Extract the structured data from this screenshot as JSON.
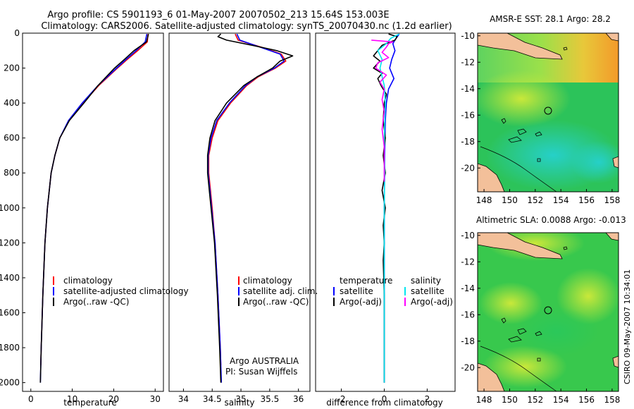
{
  "header": {
    "line1": "Argo profile: CS 5901193_6 01-May-2007 20070502_213 15.64S 153.003E",
    "line2": "Climatology: CARS2006. Satellite-adjusted climatology: synTS_20070430.nc (1.2d earlier)"
  },
  "footer_stamp": "CSIRO 09-May-2007 10:34:01",
  "colors": {
    "climatology": "#ff0000",
    "satellite_adj": "#0000ff",
    "argo": "#000000",
    "salinity_satellite": "#00e5ee",
    "salinity_argo": "#ff00ff",
    "land": "#f3c09a"
  },
  "chart_data": [
    {
      "type": "line",
      "id": "temperature_panel",
      "xlabel": "temperature",
      "ylabel": "",
      "xlim": [
        -2,
        32
      ],
      "ylim": [
        2050,
        0
      ],
      "xticks": [
        0,
        10,
        20,
        30
      ],
      "yticks": [
        0,
        200,
        400,
        600,
        800,
        1000,
        1200,
        1400,
        1600,
        1800,
        2000
      ],
      "legend": {
        "placement": "bottom",
        "entries": [
          "climatology",
          "satellite-adjusted climatology",
          "Argo(..raw -QC)"
        ]
      },
      "series": [
        {
          "name": "climatology",
          "color": "#ff0000",
          "depth": [
            5,
            50,
            100,
            150,
            200,
            300,
            400,
            500,
            600,
            700,
            800,
            1000,
            1200,
            1500,
            1800,
            1900
          ],
          "values": [
            28.3,
            28.1,
            25.8,
            23.3,
            20.9,
            16.4,
            12.6,
            9.2,
            7.0,
            5.8,
            4.9,
            4.0,
            3.4,
            2.9,
            2.5,
            2.4
          ]
        },
        {
          "name": "satellite-adjusted climatology",
          "color": "#0000ff",
          "depth": [
            5,
            50,
            100,
            150,
            200,
            300,
            400,
            500,
            600,
            700,
            800,
            1000,
            1200,
            1500,
            1800,
            2000
          ],
          "values": [
            28.0,
            27.6,
            25.4,
            23.0,
            20.7,
            16.2,
            12.4,
            9.1,
            7.0,
            5.8,
            4.9,
            4.0,
            3.4,
            2.9,
            2.5,
            2.3
          ]
        },
        {
          "name": "Argo(..raw -QC)",
          "color": "#000000",
          "depth": [
            5,
            50,
            100,
            150,
            200,
            300,
            400,
            500,
            600,
            700,
            800,
            1000,
            1200,
            1500,
            1800,
            2000
          ],
          "values": [
            28.4,
            27.9,
            24.9,
            22.6,
            20.2,
            16.2,
            12.8,
            9.3,
            7.0,
            5.8,
            4.9,
            4.0,
            3.4,
            2.9,
            2.5,
            2.3
          ]
        }
      ]
    },
    {
      "type": "line",
      "id": "salinity_panel",
      "xlabel": "salinity",
      "xlim": [
        33.75,
        36.2
      ],
      "ylim": [
        2050,
        0
      ],
      "xticks": [
        34,
        34.5,
        35,
        35.5,
        36
      ],
      "legend": {
        "placement": "bottom",
        "entries": [
          "climatology",
          "satellite adj. clim.",
          "Argo(..raw -QC)"
        ]
      },
      "annotations": [
        "Argo AUSTRALIA",
        "PI: Susan Wijffels"
      ],
      "series": [
        {
          "name": "climatology",
          "color": "#ff0000",
          "depth": [
            5,
            40,
            80,
            120,
            160,
            200,
            250,
            300,
            400,
            500,
            600,
            700,
            800,
            900,
            1000,
            1200,
            1500,
            1800,
            1900
          ],
          "values": [
            34.9,
            34.95,
            35.35,
            35.7,
            35.78,
            35.6,
            35.3,
            35.1,
            34.82,
            34.6,
            34.5,
            34.44,
            34.44,
            34.47,
            34.5,
            34.55,
            34.6,
            34.64,
            34.65
          ]
        },
        {
          "name": "satellite adj. clim.",
          "color": "#0000ff",
          "depth": [
            5,
            40,
            80,
            120,
            160,
            200,
            250,
            300,
            400,
            500,
            600,
            700,
            800,
            900,
            1000,
            1200,
            1500,
            1800,
            2000
          ],
          "values": [
            34.93,
            34.98,
            35.33,
            35.68,
            35.75,
            35.58,
            35.28,
            35.08,
            34.8,
            34.58,
            34.48,
            34.43,
            34.43,
            34.46,
            34.49,
            34.55,
            34.6,
            34.64,
            34.66
          ]
        },
        {
          "name": "Argo(..raw -QC)",
          "color": "#000000",
          "depth": [
            5,
            20,
            40,
            70,
            100,
            130,
            160,
            200,
            250,
            300,
            400,
            500,
            600,
            700,
            800,
            900,
            1000,
            1200,
            1500,
            1800,
            2000
          ],
          "values": [
            34.65,
            34.6,
            34.75,
            35.2,
            35.62,
            35.9,
            35.68,
            35.55,
            35.28,
            35.05,
            34.75,
            34.55,
            34.46,
            34.42,
            34.42,
            34.45,
            34.48,
            34.54,
            34.59,
            34.63,
            34.65
          ]
        }
      ]
    },
    {
      "type": "line",
      "id": "difference_panel",
      "xlabel": "difference from climatology",
      "xlim": [
        -3.2,
        3.3
      ],
      "ylim": [
        2050,
        0
      ],
      "xticks": [
        -2,
        0,
        2
      ],
      "legend": {
        "placement": "bottom",
        "headings": [
          "temperature",
          "salinity"
        ],
        "entries": [
          "satellite",
          "Argo(-adj)",
          "satellite",
          "Argo(-adj)"
        ]
      },
      "series": [
        {
          "name": "temperature satellite",
          "color": "#0000ff",
          "depth": [
            5,
            30,
            60,
            100,
            150,
            200,
            260,
            320,
            400,
            500,
            700,
            1000,
            1500,
            2000
          ],
          "values": [
            0.7,
            0.55,
            0.4,
            0.5,
            0.35,
            0.25,
            0.45,
            0.2,
            0.1,
            0.05,
            0.02,
            0.0,
            0.0,
            0.0
          ]
        },
        {
          "name": "temperature Argo(-adj)",
          "color": "#000000",
          "depth": [
            5,
            20,
            40,
            70,
            100,
            130,
            160,
            200,
            230,
            260,
            300,
            350,
            400,
            500,
            600,
            700,
            800,
            900,
            1000,
            1100,
            1200,
            1300,
            1500,
            2000
          ],
          "values": [
            0.2,
            0.6,
            0.5,
            -0.1,
            -0.3,
            -0.5,
            -0.2,
            -0.5,
            -0.1,
            -0.3,
            -0.15,
            0.1,
            0.0,
            -0.05,
            0.05,
            -0.05,
            0.05,
            -0.1,
            0.05,
            -0.05,
            0.0,
            -0.05,
            0.0,
            0.0
          ]
        },
        {
          "name": "salinity satellite",
          "color": "#00e5ee",
          "depth": [
            5,
            30,
            60,
            100,
            150,
            200,
            300,
            400,
            600,
            800,
            1000,
            1500,
            2000
          ],
          "values": [
            0.7,
            0.3,
            0.1,
            -0.3,
            -0.1,
            -0.2,
            0.0,
            0.05,
            0.0,
            0.02,
            0.0,
            0.0,
            0.0
          ]
        },
        {
          "name": "salinity Argo(-adj)",
          "color": "#ff00ff",
          "depth": [
            40,
            50,
            60,
            80,
            110,
            140,
            170,
            200,
            240,
            280,
            320,
            380,
            450,
            550,
            650,
            750,
            850
          ],
          "values": [
            -0.6,
            0.4,
            0.2,
            0.1,
            -0.1,
            0.2,
            -0.3,
            -0.4,
            0.1,
            -0.2,
            0.0,
            -0.1,
            0.0,
            -0.1,
            0.0,
            0.0,
            0.0
          ]
        }
      ]
    },
    {
      "type": "heatmap",
      "id": "map_sst",
      "title": "AMSR-E SST: 28.1 Argo: 28.2",
      "xlim": [
        147.5,
        158.5
      ],
      "ylim": [
        -21.8,
        -9.8
      ],
      "xticks": [
        148,
        150,
        152,
        154,
        156,
        158
      ],
      "yticks": [
        -10,
        -12,
        -14,
        -16,
        -18,
        -20
      ],
      "marker": {
        "lon": 153.003,
        "lat": -15.64
      }
    },
    {
      "type": "heatmap",
      "id": "map_sla",
      "title": "Altimetric SLA: 0.0088 Argo: -0.013",
      "xlim": [
        147.5,
        158.5
      ],
      "ylim": [
        -21.8,
        -9.8
      ],
      "xticks": [
        148,
        150,
        152,
        154,
        156,
        158
      ],
      "yticks": [
        -10,
        -12,
        -14,
        -16,
        -18,
        -20
      ],
      "marker": {
        "lon": 153.003,
        "lat": -15.64
      }
    }
  ]
}
